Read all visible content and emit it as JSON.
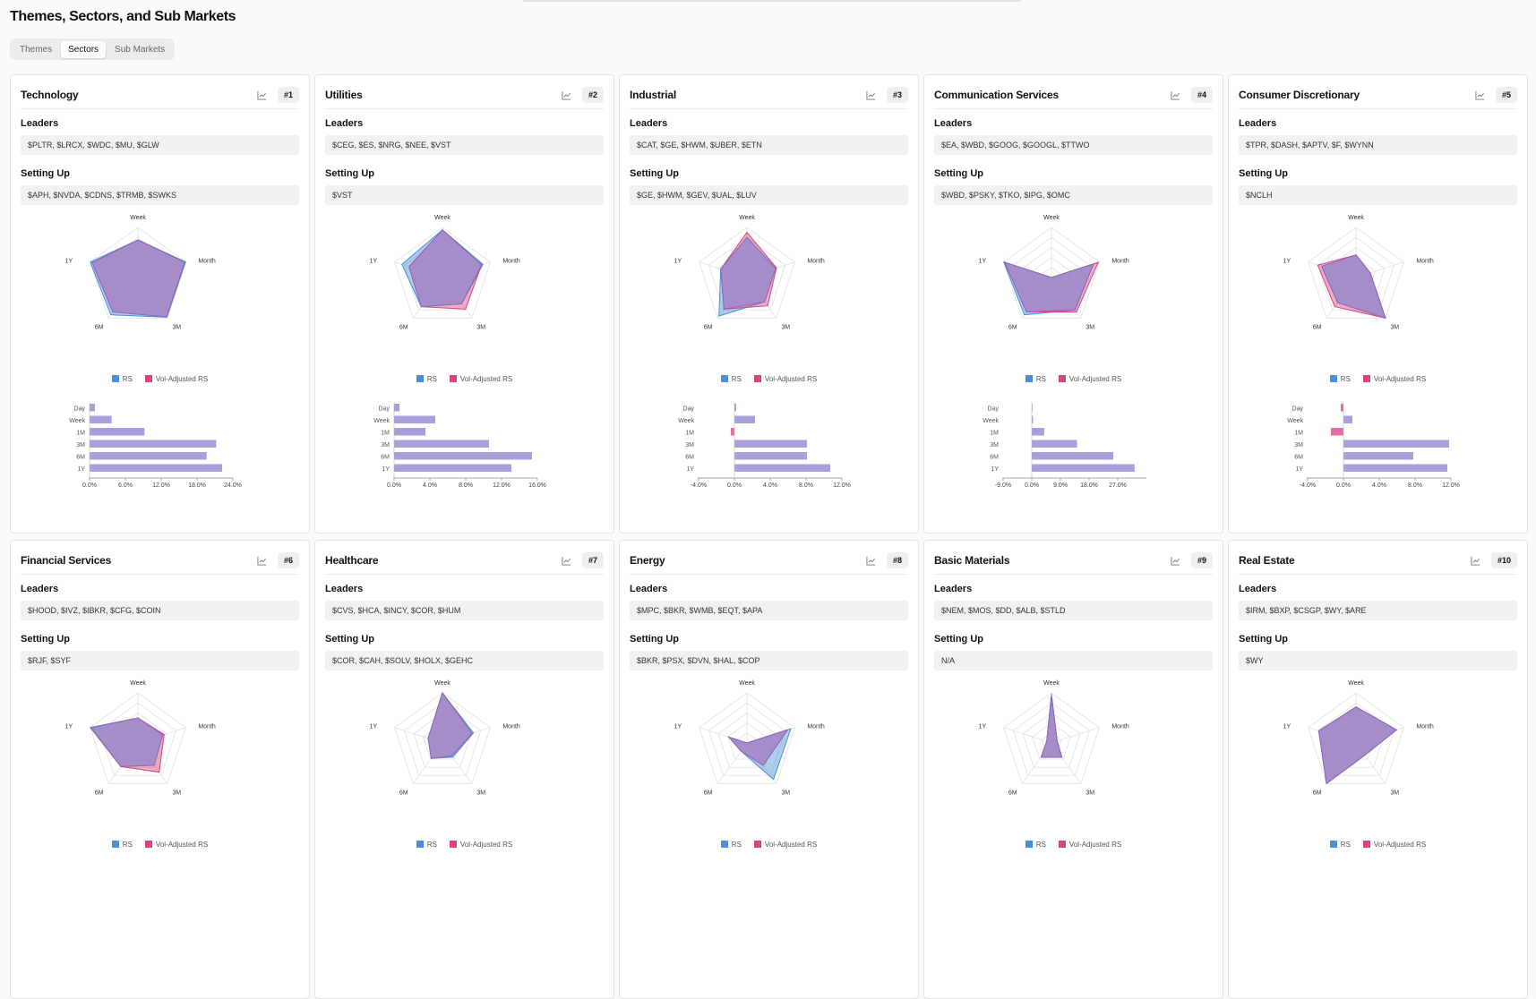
{
  "page_title": "Themes, Sectors, and Sub Markets",
  "tabs": [
    {
      "label": "Themes",
      "active": false
    },
    {
      "label": "Sectors",
      "active": true
    },
    {
      "label": "Sub Markets",
      "active": false
    }
  ],
  "labels": {
    "leaders": "Leaders",
    "setting_up": "Setting Up"
  },
  "colors": {
    "rs": "#4a90d9",
    "vol_rs": "#d6457f",
    "fill": "#9b8bcf",
    "bar": "#a7a0da",
    "bar_neg": "#e26fa3"
  },
  "icon": "line-chart-icon",
  "chart_data": [
    {
      "type": "radar+bar",
      "title": "Technology",
      "rank": "#1",
      "leaders": "$PLTR, $LRCX, $WDC, $MU, $GLW",
      "setting_up": "$APH, $NVDA, $CDNS, $TRMB, $SWKS",
      "axes": [
        "Week",
        "Month",
        "3M",
        "6M",
        "1Y"
      ],
      "legend": [
        "RS",
        "Vol-Adjusted RS"
      ],
      "series": [
        {
          "name": "RS",
          "values": [
            0.75,
            1.0,
            0.98,
            0.92,
            1.0
          ]
        },
        {
          "name": "Vol-Adjusted RS",
          "values": [
            0.75,
            0.98,
            0.97,
            0.85,
            0.96
          ]
        }
      ],
      "bar_categories": [
        "Day",
        "Week",
        "1M",
        "3M",
        "6M",
        "1Y"
      ],
      "bar_values": [
        0.9,
        3.7,
        9.2,
        21.2,
        19.6,
        22.2
      ],
      "bar_ticks": [
        0,
        6,
        12,
        18,
        24
      ],
      "xlim": [
        0,
        24
      ]
    },
    {
      "type": "radar+bar",
      "title": "Utilities",
      "rank": "#2",
      "leaders": "$CEG, $ES, $NRG, $NEE, $VST",
      "setting_up": "$VST",
      "axes": [
        "Week",
        "Month",
        "3M",
        "6M",
        "1Y"
      ],
      "legend": [
        "RS",
        "Vol-Adjusted RS"
      ],
      "series": [
        {
          "name": "RS",
          "values": [
            0.95,
            0.85,
            0.65,
            0.72,
            0.85
          ]
        },
        {
          "name": "Vol-Adjusted RS",
          "values": [
            0.95,
            0.82,
            0.78,
            0.72,
            0.7
          ]
        }
      ],
      "bar_categories": [
        "Day",
        "Week",
        "1M",
        "3M",
        "6M",
        "1Y"
      ],
      "bar_values": [
        0.6,
        4.6,
        3.5,
        10.6,
        15.4,
        13.1
      ],
      "bar_ticks": [
        0,
        4,
        8,
        12,
        16
      ],
      "xlim": [
        0,
        16
      ]
    },
    {
      "type": "radar+bar",
      "title": "Industrial",
      "rank": "#3",
      "leaders": "$CAT, $GE, $HWM, $UBER, $ETN",
      "setting_up": "$GE, $HWM, $GEV, $UAL, $LUV",
      "axes": [
        "Week",
        "Month",
        "3M",
        "6M",
        "1Y"
      ],
      "legend": [
        "RS",
        "Vol-Adjusted RS"
      ],
      "series": [
        {
          "name": "RS",
          "values": [
            0.8,
            0.6,
            0.6,
            0.95,
            0.55
          ]
        },
        {
          "name": "Vol-Adjusted RS",
          "values": [
            0.9,
            0.62,
            0.7,
            0.78,
            0.55
          ]
        }
      ],
      "bar_categories": [
        "Day",
        "Week",
        "1M",
        "3M",
        "6M",
        "1Y"
      ],
      "bar_values": [
        0.2,
        2.3,
        -0.4,
        8.1,
        8.1,
        10.7
      ],
      "bar_ticks": [
        -4,
        0,
        4,
        8,
        12
      ],
      "xlim": [
        -4,
        12
      ]
    },
    {
      "type": "radar+bar",
      "title": "Communication Services",
      "rank": "#4",
      "leaders": "$EA, $WBD, $GOOG, $GOOGL, $TTWO",
      "setting_up": "$WBD, $PSKY, $TKO, $IPG, $OMC",
      "axes": [
        "Week",
        "Month",
        "3M",
        "6M",
        "1Y"
      ],
      "legend": [
        "RS",
        "Vol-Adjusted RS"
      ],
      "series": [
        {
          "name": "RS",
          "values": [
            0.0,
            0.88,
            0.8,
            0.92,
            1.0
          ]
        },
        {
          "name": "Vol-Adjusted RS",
          "values": [
            0.0,
            0.98,
            0.85,
            0.85,
            0.98
          ]
        }
      ],
      "bar_categories": [
        "Day",
        "Week",
        "1M",
        "3M",
        "6M",
        "1Y"
      ],
      "bar_values": [
        0.2,
        0.4,
        3.9,
        14.2,
        25.6,
        32.3
      ],
      "bar_ticks": [
        -9,
        0,
        9,
        18,
        27
      ],
      "xlim": [
        -9,
        36
      ]
    },
    {
      "type": "radar+bar",
      "title": "Consumer Discretionary",
      "rank": "#5",
      "leaders": "$TPR, $DASH, $APTV, $F, $WYNN",
      "setting_up": "$NCLH",
      "axes": [
        "Week",
        "Month",
        "3M",
        "6M",
        "1Y"
      ],
      "legend": [
        "RS",
        "Vol-Adjusted RS"
      ],
      "series": [
        {
          "name": "RS",
          "values": [
            0.45,
            0.3,
            1.0,
            0.62,
            0.72
          ]
        },
        {
          "name": "Vol-Adjusted RS",
          "values": [
            0.45,
            0.3,
            1.0,
            0.72,
            0.8
          ]
        }
      ],
      "bar_categories": [
        "Day",
        "Week",
        "1M",
        "3M",
        "6M",
        "1Y"
      ],
      "bar_values": [
        -0.3,
        1.0,
        -1.4,
        11.8,
        7.8,
        11.6
      ],
      "bar_ticks": [
        -4,
        0,
        4,
        8,
        12
      ],
      "xlim": [
        -4,
        12
      ]
    },
    {
      "type": "radar+bar",
      "title": "Financial Services",
      "rank": "#6",
      "leaders": "$HOOD, $IVZ, $IBKR, $CFG, $COIN",
      "setting_up": "$RJF, $SYF",
      "axes": [
        "Week",
        "Month",
        "3M",
        "6M",
        "1Y"
      ],
      "legend": [
        "RS",
        "Vol-Adjusted RS"
      ],
      "series": [
        {
          "name": "RS",
          "values": [
            0.5,
            0.52,
            0.55,
            0.58,
            1.0
          ]
        },
        {
          "name": "Vol-Adjusted RS",
          "values": [
            0.5,
            0.55,
            0.72,
            0.58,
            0.98
          ]
        }
      ],
      "bar_categories": [],
      "bar_values": [],
      "bar_ticks": [],
      "xlim": [
        0,
        1
      ]
    },
    {
      "type": "radar+bar",
      "title": "Healthcare",
      "rank": "#7",
      "leaders": "$CVS, $HCA, $INCY, $COR, $HUM",
      "setting_up": "$COR, $CAH, $SOLV, $HOLX, $GEHC",
      "axes": [
        "Week",
        "Month",
        "3M",
        "6M",
        "1Y"
      ],
      "legend": [
        "RS",
        "Vol-Adjusted RS"
      ],
      "series": [
        {
          "name": "RS",
          "values": [
            1.0,
            0.65,
            0.35,
            0.38,
            0.3
          ]
        },
        {
          "name": "Vol-Adjusted RS",
          "values": [
            1.0,
            0.62,
            0.32,
            0.38,
            0.3
          ]
        }
      ],
      "bar_categories": [],
      "bar_values": [],
      "bar_ticks": [],
      "xlim": [
        0,
        1
      ]
    },
    {
      "type": "radar+bar",
      "title": "Energy",
      "rank": "#8",
      "leaders": "$MPC, $BKR, $WMB, $EQT, $APA",
      "setting_up": "$BKR, $PSX, $DVN, $HAL, $COP",
      "axes": [
        "Week",
        "Month",
        "3M",
        "6M",
        "1Y"
      ],
      "legend": [
        "RS",
        "Vol-Adjusted RS"
      ],
      "series": [
        {
          "name": "RS",
          "values": [
            0.0,
            0.92,
            0.9,
            0.2,
            0.38
          ]
        },
        {
          "name": "Vol-Adjusted RS",
          "values": [
            0.0,
            0.85,
            0.55,
            0.2,
            0.38
          ]
        }
      ],
      "bar_categories": [],
      "bar_values": [],
      "bar_ticks": [],
      "xlim": [
        0,
        1
      ]
    },
    {
      "type": "radar+bar",
      "title": "Basic Materials",
      "rank": "#9",
      "leaders": "$NEM, $MOS, $DD, $ALB, $STLD",
      "setting_up": "N/A",
      "axes": [
        "Week",
        "Month",
        "3M",
        "6M",
        "1Y"
      ],
      "legend": [
        "RS",
        "Vol-Adjusted RS"
      ],
      "series": [
        {
          "name": "RS",
          "values": [
            0.98,
            0.12,
            0.35,
            0.35,
            0.1
          ]
        },
        {
          "name": "Vol-Adjusted RS",
          "values": [
            0.92,
            0.12,
            0.35,
            0.35,
            0.1
          ]
        }
      ],
      "bar_categories": [],
      "bar_values": [],
      "bar_ticks": [],
      "xlim": [
        0,
        1
      ]
    },
    {
      "type": "radar+bar",
      "title": "Real Estate",
      "rank": "#10",
      "leaders": "$IRM, $BXP, $CSGP, $WY, $ARE",
      "setting_up": "$WY",
      "axes": [
        "Week",
        "Month",
        "3M",
        "6M",
        "1Y"
      ],
      "legend": [
        "RS",
        "Vol-Adjusted RS"
      ],
      "series": [
        {
          "name": "RS",
          "values": [
            0.72,
            0.85,
            0.3,
            1.0,
            0.78
          ]
        },
        {
          "name": "Vol-Adjusted RS",
          "values": [
            0.72,
            0.85,
            0.3,
            1.0,
            0.78
          ]
        }
      ],
      "bar_categories": [],
      "bar_values": [],
      "bar_ticks": [],
      "xlim": [
        0,
        1
      ]
    }
  ]
}
